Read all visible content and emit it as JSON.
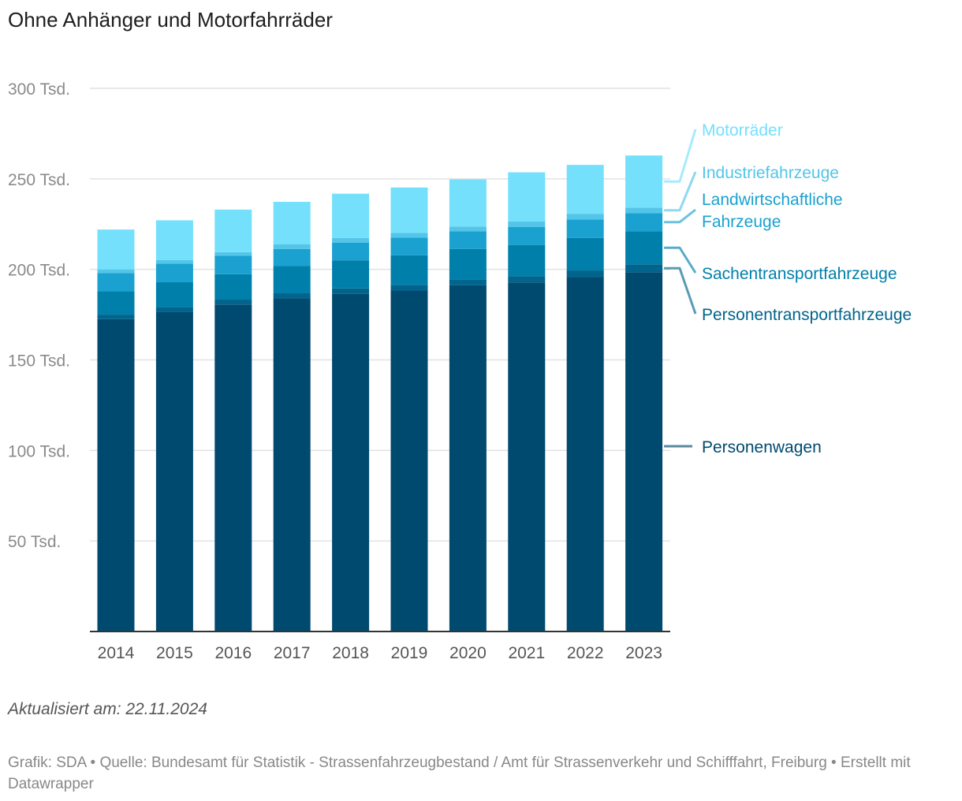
{
  "title": "Ohne Anhänger und Motorfahrräder",
  "updated": "Aktualisiert am: 22.11.2024",
  "footer": "Grafik: SDA • Quelle: Bundesamt für Statistik - Strassenfahrzeugbestand / Amt für Strassenverkehr und Schifffahrt, Freiburg • Erstellt mit Datawrapper",
  "chart_data": {
    "type": "bar",
    "stacked": true,
    "categories": [
      "2014",
      "2015",
      "2016",
      "2017",
      "2018",
      "2019",
      "2020",
      "2021",
      "2022",
      "2023"
    ],
    "ylim": [
      0,
      300000
    ],
    "yticks": [
      {
        "value": 50000,
        "label": "50 Tsd."
      },
      {
        "value": 100000,
        "label": "100 Tsd."
      },
      {
        "value": 150000,
        "label": "150 Tsd."
      },
      {
        "value": 200000,
        "label": "200 Tsd."
      },
      {
        "value": 250000,
        "label": "250 Tsd."
      },
      {
        "value": 300000,
        "label": "300 Tsd."
      }
    ],
    "grid": true,
    "legend": "right, direct labels",
    "series": [
      {
        "name": "Personenwagen",
        "color": "#004a6f",
        "values": [
          172500,
          176700,
          180600,
          184000,
          186500,
          188300,
          191200,
          192800,
          195700,
          198400
        ]
      },
      {
        "name": "Personentransportfahrzeuge",
        "color": "#00648c",
        "values": [
          2500,
          2600,
          2700,
          2800,
          3000,
          3200,
          3300,
          3400,
          3700,
          4400
        ]
      },
      {
        "name": "Sachentransportfahrzeuge",
        "color": "#007fab",
        "values": [
          13000,
          13600,
          14000,
          15000,
          15500,
          16300,
          16800,
          17300,
          18000,
          18300
        ]
      },
      {
        "name": "Landwirtschaftliche Fahrzeuge",
        "color": "#1aa1d0",
        "values": [
          10000,
          10200,
          10200,
          9500,
          9800,
          9800,
          9800,
          10000,
          10200,
          10000
        ]
      },
      {
        "name": "Industriefahrzeuge",
        "color": "#52c5e8",
        "values": [
          2000,
          2000,
          2000,
          2500,
          2500,
          2600,
          2600,
          2900,
          3100,
          3000
        ]
      },
      {
        "name": "Motorräder",
        "color": "#74e0fc",
        "values": [
          22000,
          22000,
          23500,
          23500,
          24500,
          25000,
          26000,
          27200,
          27000,
          28800
        ]
      }
    ]
  }
}
